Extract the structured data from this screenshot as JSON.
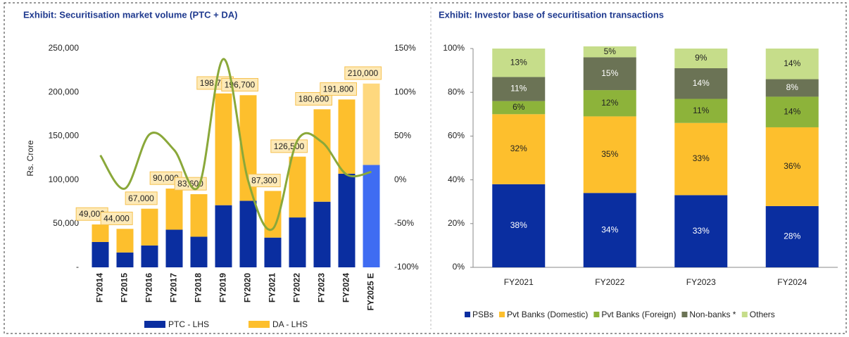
{
  "chart_data": [
    {
      "type": "stacked_bar_line",
      "title": "Exhibit: Securitisation market volume (PTC + DA)",
      "ylabel": "Rs. Crore",
      "categories": [
        "FY2014",
        "FY2015",
        "FY2016",
        "FY2017",
        "FY2018",
        "FY2019",
        "FY2020",
        "FY2021",
        "FY2022",
        "FY2023",
        "FY2024",
        "FY2025 E"
      ],
      "series": [
        {
          "name": "PTC - LHS",
          "color": "#0a2ea0",
          "colors": [
            "#0a2ea0",
            "#0a2ea0",
            "#0a2ea0",
            "#0a2ea0",
            "#0a2ea0",
            "#0a2ea0",
            "#0a2ea0",
            "#0a2ea0",
            "#0a2ea0",
            "#0a2ea0",
            "#0a2ea0",
            "#3f6cf2"
          ],
          "values": [
            29000,
            17000,
            25000,
            43000,
            35000,
            71000,
            76000,
            34000,
            57000,
            75000,
            107000,
            117000
          ]
        },
        {
          "name": "DA - LHS",
          "color": "#fdbf2d",
          "colors": [
            "#fdbf2d",
            "#fdbf2d",
            "#fdbf2d",
            "#fdbf2d",
            "#fdbf2d",
            "#fdbf2d",
            "#fdbf2d",
            "#fdbf2d",
            "#fdbf2d",
            "#fdbf2d",
            "#fdbf2d",
            "#fed87e"
          ],
          "values": [
            20000,
            27000,
            42000,
            47000,
            48600,
            127700,
            120700,
            53300,
            69500,
            105600,
            84800,
            93000
          ]
        },
        {
          "color": "#8aa83a",
          "axis": "y2",
          "values": [
            28,
            -10,
            52,
            34,
            -7,
            138,
            -1,
            -56,
            45,
            43,
            6,
            9
          ]
        }
      ],
      "total_labels": [
        "49,000",
        "44,000",
        "67,000",
        "90,000",
        "83,600",
        "198,700",
        "196,700",
        "87,300",
        "126,500",
        "180,600",
        "191,800",
        "210,000"
      ],
      "ylim": [
        0,
        250000
      ],
      "yticks": [
        {
          "value": 0,
          "label": "-"
        },
        {
          "value": 50000,
          "label": "50,000"
        },
        {
          "value": 100000,
          "label": "100,000"
        },
        {
          "value": 150000,
          "label": "150,000"
        },
        {
          "value": 200000,
          "label": "200,000"
        },
        {
          "value": 250000,
          "label": "250,000"
        }
      ],
      "y2lim": [
        -100,
        150
      ],
      "y2ticks": [
        {
          "value": -100,
          "label": "-100%"
        },
        {
          "value": -50,
          "label": "-50%"
        },
        {
          "value": 0,
          "label": "0%"
        },
        {
          "value": 50,
          "label": "50%"
        },
        {
          "value": 100,
          "label": "100%"
        },
        {
          "value": 150,
          "label": "150%"
        }
      ],
      "legend": "bottom"
    },
    {
      "type": "stacked_bar",
      "title": "Exhibit: Investor base of securitisation transactions",
      "categories": [
        "FY2021",
        "FY2022",
        "FY2023",
        "FY2024"
      ],
      "series": [
        {
          "name": "PSBs",
          "color": "#0a2ea0",
          "label_color": "#ffffff",
          "values": [
            38,
            34,
            33,
            28
          ],
          "value_labels": [
            "38%",
            "34%",
            "33%",
            "28%"
          ]
        },
        {
          "name": "Pvt Banks (Domestic)",
          "color": "#fdbf2d",
          "label_color": "#222222",
          "values": [
            32,
            35,
            33,
            36
          ],
          "value_labels": [
            "32%",
            "35%",
            "33%",
            "36%"
          ]
        },
        {
          "name": "Pvt Banks (Foreign)",
          "color": "#8db33a",
          "label_color": "#222222",
          "values": [
            6,
            12,
            11,
            14
          ],
          "value_labels": [
            "6%",
            "12%",
            "11%",
            "14%"
          ]
        },
        {
          "name": "Non-banks *",
          "color": "#6b7355",
          "label_color": "#ffffff",
          "values": [
            11,
            15,
            14,
            8
          ],
          "value_labels": [
            "11%",
            "15%",
            "14%",
            "8%"
          ]
        },
        {
          "name": "Others",
          "color": "#c6dd8a",
          "label_color": "#222222",
          "values": [
            13,
            5,
            9,
            14
          ],
          "value_labels": [
            "13%",
            "5%",
            "9%",
            "14%"
          ]
        }
      ],
      "ylim": [
        0,
        100
      ],
      "yticks": [
        {
          "value": 0,
          "label": "0%"
        },
        {
          "value": 20,
          "label": "20%"
        },
        {
          "value": 40,
          "label": "40%"
        },
        {
          "value": 60,
          "label": "60%"
        },
        {
          "value": 80,
          "label": "80%"
        },
        {
          "value": 100,
          "label": "100%"
        }
      ],
      "legend": "bottom"
    }
  ]
}
